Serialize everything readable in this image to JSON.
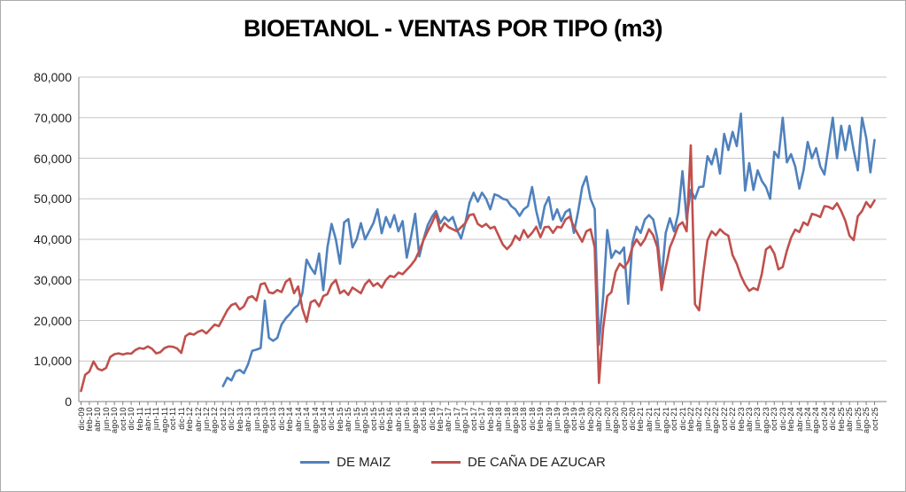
{
  "title": "BIOETANOL - VENTAS POR TIPO (m3)",
  "chart_data": {
    "type": "line",
    "title": "BIOETANOL - VENTAS POR TIPO (m3)",
    "xlabel": "",
    "ylabel": "",
    "ylim": [
      0,
      80000
    ],
    "y_ticks": [
      0,
      10000,
      20000,
      30000,
      40000,
      50000,
      60000,
      70000,
      80000
    ],
    "grid": true,
    "legend_position": "bottom",
    "x_tick_label_every": 2,
    "months": [
      "dic-09",
      "ene-10",
      "feb-10",
      "mar-10",
      "abr-10",
      "may-10",
      "jun-10",
      "jul-10",
      "ago-10",
      "sep-10",
      "oct-10",
      "nov-10",
      "dic-10",
      "ene-11",
      "feb-11",
      "mar-11",
      "abr-11",
      "may-11",
      "jun-11",
      "jul-11",
      "ago-11",
      "sep-11",
      "oct-11",
      "nov-11",
      "dic-11",
      "ene-12",
      "feb-12",
      "mar-12",
      "abr-12",
      "may-12",
      "jun-12",
      "jul-12",
      "ago-12",
      "sep-12",
      "oct-12",
      "nov-12",
      "dic-12",
      "ene-13",
      "feb-13",
      "mar-13",
      "abr-13",
      "may-13",
      "jun-13",
      "jul-13",
      "ago-13",
      "sep-13",
      "oct-13",
      "nov-13",
      "dic-13",
      "ene-14",
      "feb-14",
      "mar-14",
      "abr-14",
      "may-14",
      "jun-14",
      "jul-14",
      "ago-14",
      "sep-14",
      "oct-14",
      "nov-14",
      "dic-14",
      "ene-15",
      "feb-15",
      "mar-15",
      "abr-15",
      "may-15",
      "jun-15",
      "jul-15",
      "ago-15",
      "sep-15",
      "oct-15",
      "nov-15",
      "dic-15",
      "ene-16",
      "feb-16",
      "mar-16",
      "abr-16",
      "may-16",
      "jun-16",
      "jul-16",
      "ago-16",
      "sep-16",
      "oct-16",
      "nov-16",
      "dic-16",
      "ene-17",
      "feb-17",
      "mar-17",
      "abr-17",
      "may-17",
      "jun-17",
      "jul-17",
      "ago-17",
      "sep-17",
      "oct-17",
      "nov-17",
      "dic-17",
      "ene-18",
      "feb-18",
      "mar-18",
      "abr-18",
      "may-18",
      "jun-18",
      "jul-18",
      "ago-18",
      "sep-18",
      "oct-18",
      "nov-18",
      "dic-18",
      "ene-19",
      "feb-19",
      "mar-19",
      "abr-19",
      "may-19",
      "jun-19",
      "jul-19",
      "ago-19",
      "sep-19",
      "oct-19",
      "nov-19",
      "dic-19",
      "ene-20",
      "feb-20",
      "mar-20",
      "abr-20",
      "may-20",
      "jun-20",
      "jul-20",
      "ago-20",
      "sep-20",
      "oct-20",
      "nov-20",
      "dic-20",
      "ene-21",
      "feb-21",
      "mar-21",
      "abr-21",
      "may-21",
      "jun-21",
      "jul-21",
      "ago-21",
      "sep-21",
      "oct-21",
      "nov-21",
      "dic-21",
      "ene-22",
      "feb-22",
      "mar-22",
      "abr-22",
      "may-22",
      "jun-22",
      "jul-22",
      "ago-22",
      "sep-22",
      "oct-22",
      "nov-22",
      "dic-22",
      "ene-23",
      "feb-23",
      "mar-23",
      "abr-23",
      "may-23",
      "jun-23",
      "jul-23",
      "ago-23",
      "sep-23",
      "oct-23",
      "nov-23",
      "dic-23",
      "ene-24",
      "feb-24",
      "mar-24",
      "abr-24",
      "may-24",
      "jun-24",
      "jul-24",
      "ago-24",
      "sep-24",
      "oct-24",
      "nov-24",
      "dic-24",
      "ene-25",
      "feb-25",
      "mar-25",
      "abr-25",
      "may-25",
      "jun-25",
      "jul-25",
      "ago-25",
      "sep-25",
      "oct-25"
    ],
    "series": [
      {
        "name": "DE MAIZ",
        "color": "#4F81BD",
        "values": [
          null,
          null,
          null,
          null,
          null,
          null,
          null,
          null,
          null,
          null,
          null,
          null,
          null,
          null,
          null,
          null,
          null,
          null,
          null,
          null,
          null,
          null,
          null,
          null,
          null,
          null,
          null,
          null,
          null,
          null,
          null,
          null,
          null,
          null,
          3800,
          5900,
          5200,
          7400,
          7800,
          7000,
          9200,
          12500,
          12800,
          13200,
          24900,
          15700,
          15000,
          15700,
          19000,
          20500,
          21600,
          23000,
          23800,
          26700,
          35000,
          33000,
          31500,
          36500,
          27500,
          38000,
          43800,
          40000,
          34000,
          44200,
          45000,
          38000,
          40000,
          44000,
          40000,
          42000,
          44000,
          47400,
          41500,
          45500,
          43000,
          46000,
          42000,
          44500,
          35500,
          40500,
          46300,
          35800,
          40000,
          43500,
          45500,
          47000,
          44000,
          45500,
          44500,
          45500,
          42400,
          40200,
          44000,
          49000,
          51500,
          49300,
          51500,
          50000,
          47400,
          51100,
          50700,
          50000,
          49700,
          48200,
          47400,
          45800,
          47400,
          48200,
          52900,
          47000,
          42700,
          48200,
          50400,
          44900,
          47400,
          44500,
          46700,
          47400,
          41600,
          46700,
          52900,
          55500,
          50000,
          47500,
          14000,
          25600,
          42300,
          35400,
          37200,
          36500,
          38000,
          24100,
          39100,
          43100,
          41600,
          44900,
          46000,
          44900,
          40200,
          30000,
          41600,
          45200,
          42000,
          46500,
          56800,
          45000,
          52200,
          50000,
          52900,
          53000,
          60500,
          58500,
          62300,
          56200,
          66000,
          62000,
          66500,
          63000,
          71000,
          52000,
          58800,
          52200,
          57000,
          54400,
          52900,
          50000,
          61600,
          60100,
          70000,
          59000,
          61000,
          58000,
          52500,
          57000,
          64000,
          60000,
          62500,
          58000,
          56000,
          63000,
          70000,
          60000,
          68000,
          62000,
          68000,
          62000,
          57000,
          70000,
          65000,
          56500,
          64500
        ]
      },
      {
        "name": "DE CAÑA DE AZUCAR",
        "color": "#C0504D",
        "values": [
          2600,
          6600,
          7400,
          9900,
          8100,
          7700,
          8300,
          11000,
          11700,
          11900,
          11600,
          11900,
          11800,
          12700,
          13200,
          13000,
          13600,
          13000,
          11900,
          12200,
          13200,
          13600,
          13500,
          13100,
          12000,
          16100,
          16800,
          16500,
          17200,
          17600,
          16800,
          17900,
          19000,
          18600,
          20500,
          22500,
          23800,
          24200,
          22700,
          23500,
          25600,
          26000,
          24900,
          28900,
          29200,
          26900,
          26700,
          27500,
          27000,
          29500,
          30300,
          26700,
          28400,
          23000,
          19700,
          24500,
          25000,
          23500,
          26000,
          26500,
          28900,
          30000,
          26700,
          27400,
          26300,
          28100,
          27400,
          26700,
          28900,
          30000,
          28500,
          29200,
          28100,
          30000,
          31000,
          30700,
          31800,
          31400,
          32500,
          33600,
          35000,
          37200,
          39800,
          42000,
          44000,
          46300,
          42000,
          44000,
          43000,
          42500,
          42000,
          43000,
          44000,
          46000,
          46200,
          43800,
          43100,
          43800,
          42700,
          43100,
          40900,
          38700,
          37600,
          38700,
          40900,
          39800,
          42300,
          40500,
          41600,
          43100,
          40500,
          43000,
          43100,
          41600,
          43100,
          42900,
          44900,
          45600,
          43100,
          41200,
          39400,
          42000,
          42500,
          38000,
          4600,
          18000,
          26000,
          27000,
          32000,
          34000,
          33000,
          34500,
          38000,
          40000,
          38500,
          40000,
          42500,
          41000,
          38000,
          27500,
          33000,
          38000,
          40500,
          43400,
          44200,
          42000,
          63200,
          24000,
          22500,
          32000,
          39800,
          42000,
          41000,
          42500,
          41500,
          40900,
          36100,
          34000,
          31000,
          28900,
          27300,
          28000,
          27500,
          31500,
          37500,
          38300,
          36500,
          32600,
          33200,
          37200,
          40400,
          42400,
          41800,
          44200,
          43500,
          46300,
          46000,
          45500,
          48200,
          48000,
          47500,
          48900,
          47000,
          44600,
          40900,
          39800,
          45700,
          47000,
          49200,
          47900,
          49600
        ]
      }
    ]
  }
}
